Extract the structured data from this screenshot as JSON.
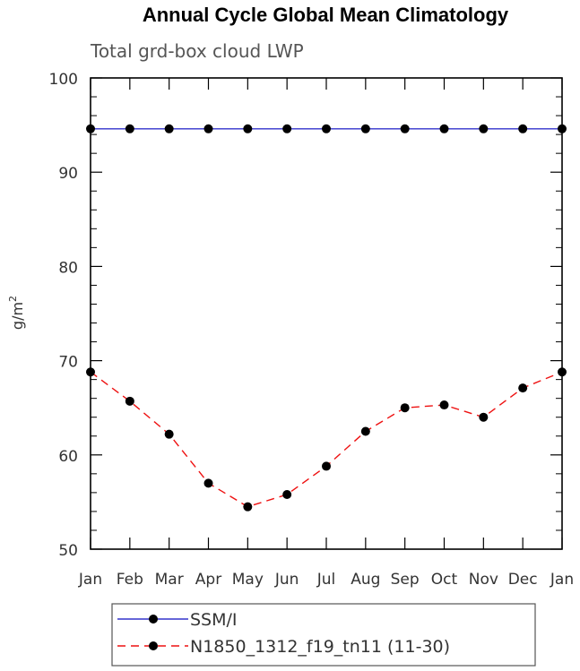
{
  "chart_data": {
    "type": "line",
    "title": "Annual Cycle Global Mean Climatology",
    "subtitle": "Total grd-box cloud LWP",
    "ylabel": "g/m",
    "ylabel_sup": "2",
    "xlabel": "",
    "categories": [
      "Jan",
      "Feb",
      "Mar",
      "Apr",
      "May",
      "Jun",
      "Jul",
      "Aug",
      "Sep",
      "Oct",
      "Nov",
      "Dec",
      "Jan"
    ],
    "ylim": [
      50,
      100
    ],
    "yticks": [
      50,
      60,
      70,
      80,
      90,
      100
    ],
    "y_minor_step": 2,
    "grid": false,
    "legend_position": "bottom",
    "series": [
      {
        "name": "SSM/I",
        "color": "#3333cc",
        "line_style": "solid",
        "marker": "filled-circle",
        "values": [
          94.6,
          94.6,
          94.6,
          94.6,
          94.6,
          94.6,
          94.6,
          94.6,
          94.6,
          94.6,
          94.6,
          94.6,
          94.6
        ]
      },
      {
        "name": "N1850_1312_f19_tn11 (11-30)",
        "color": "#ee1111",
        "line_style": "dashed",
        "marker": "filled-circle",
        "values": [
          68.8,
          65.7,
          62.2,
          57.0,
          54.5,
          55.8,
          58.8,
          62.5,
          65.0,
          65.3,
          64.0,
          67.1,
          68.8
        ]
      }
    ]
  }
}
